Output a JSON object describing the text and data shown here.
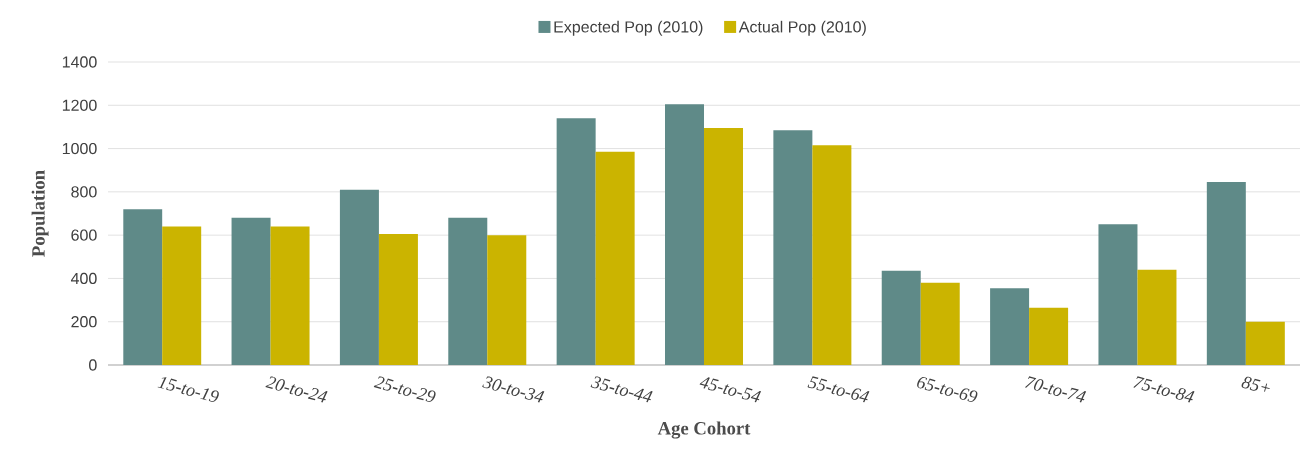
{
  "chart_data": {
    "type": "bar",
    "xlabel": "Age Cohort",
    "ylabel": "Population",
    "categories": [
      "15-to-19",
      "20-to-24",
      "25-to-29",
      "30-to-34",
      "35-to-44",
      "45-to-54",
      "55-to-64",
      "65-to-69",
      "70-to-74",
      "75-to-84",
      "85+"
    ],
    "series": [
      {
        "name": "Expected Pop (2010)",
        "color": "#5f8a88",
        "values": [
          720,
          680,
          810,
          680,
          1140,
          1205,
          1085,
          435,
          355,
          650,
          845
        ]
      },
      {
        "name": "Actual Pop (2010)",
        "color": "#cbb400",
        "values": [
          640,
          640,
          605,
          600,
          985,
          1095,
          1015,
          380,
          265,
          440,
          200
        ]
      }
    ],
    "ylim": [
      0,
      1400
    ],
    "yticks": [
      0,
      200,
      400,
      600,
      800,
      1000,
      1200,
      1400
    ],
    "grid": "y",
    "legend": "top"
  }
}
